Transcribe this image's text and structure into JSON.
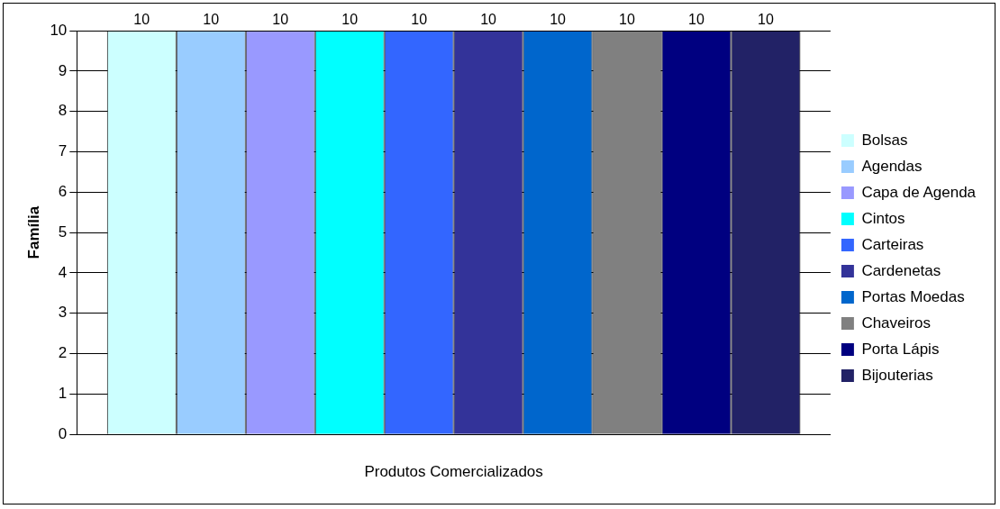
{
  "chart_data": {
    "type": "bar",
    "xlabel": "Produtos Comercializados",
    "ylabel": "Família",
    "categories": [
      null
    ],
    "series": [
      {
        "name": "Bolsas",
        "color": "#ccffff",
        "values": [
          10
        ]
      },
      {
        "name": "Agendas",
        "color": "#99ccff",
        "values": [
          10
        ]
      },
      {
        "name": "Capa de Agenda",
        "color": "#9999ff",
        "values": [
          10
        ]
      },
      {
        "name": "Cintos",
        "color": "#00ffff",
        "values": [
          10
        ]
      },
      {
        "name": "Carteiras",
        "color": "#3366ff",
        "values": [
          10
        ]
      },
      {
        "name": "Cardenetas",
        "color": "#333399",
        "values": [
          10
        ]
      },
      {
        "name": "Portas Moedas",
        "color": "#0066cc",
        "values": [
          10
        ]
      },
      {
        "name": "Chaveiros",
        "color": "#808080",
        "values": [
          10
        ]
      },
      {
        "name": "Porta Lápis",
        "color": "#000080",
        "values": [
          10
        ]
      },
      {
        "name": "Bijouterias",
        "color": "#222266",
        "values": [
          10
        ]
      }
    ],
    "ylim": [
      0,
      10
    ],
    "yticks": [
      0,
      1,
      2,
      3,
      4,
      5,
      6,
      7,
      8,
      9,
      10
    ],
    "grid": "y",
    "legend": "right",
    "data_labels": true
  }
}
